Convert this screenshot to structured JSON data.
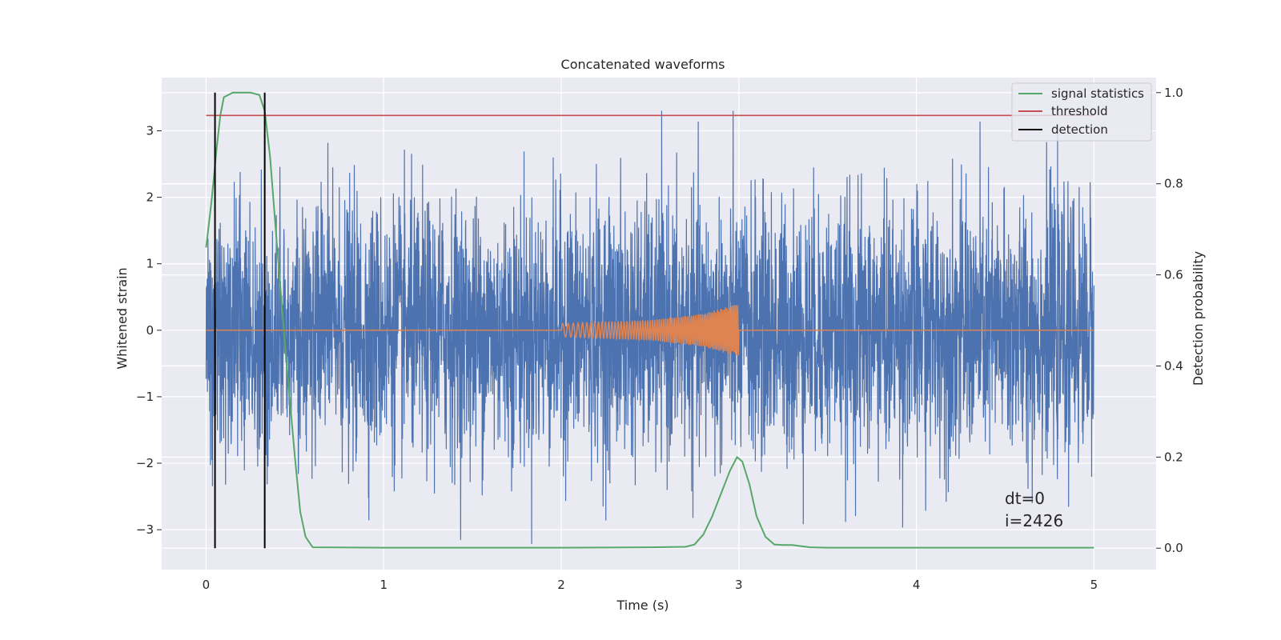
{
  "chart_data": {
    "type": "line",
    "title": "Concatenated waveforms",
    "xlabel": "Time (s)",
    "ylabel": "Whitened strain",
    "y2label": "Detection probability",
    "xlim": [
      -0.25,
      5.35
    ],
    "ylim": [
      -3.6,
      3.8
    ],
    "y2lim": [
      -0.047,
      1.033
    ],
    "grid": true,
    "legend_position": "top-right",
    "x_ticks": [
      "0",
      "1",
      "2",
      "3",
      "4",
      "5"
    ],
    "y_ticks": [
      "3",
      "2",
      "1",
      "0",
      "−1",
      "−2",
      "−3"
    ],
    "y2_ticks": [
      "1.0",
      "0.8",
      "0.6",
      "0.4",
      "0.2",
      "0.0"
    ],
    "annotations": [
      "dt=0",
      "i=2426"
    ],
    "series": [
      {
        "name": "",
        "axis": "left",
        "color": "#4c72b0",
        "description": "whitened noisy strain, about ±1.5 typical with spikes to about ±3.3",
        "x_range": [
          0,
          5
        ],
        "envelope_y": [
          -3.3,
          3.3
        ]
      },
      {
        "name": "",
        "axis": "left",
        "color": "#dd8452",
        "description": "chirp signal, zero except between t=2 and t=3 with growing amplitude",
        "x": [
          0,
          2.0,
          2.5,
          2.8,
          3.0,
          3.0,
          5.0
        ],
        "amplitude": [
          0,
          0.1,
          0.15,
          0.25,
          0.4,
          0,
          0
        ]
      },
      {
        "name": "signal statistics",
        "axis": "right",
        "color": "#55a868",
        "x": [
          0.0,
          0.03,
          0.06,
          0.08,
          0.1,
          0.15,
          0.2,
          0.25,
          0.3,
          0.33,
          0.36,
          0.4,
          0.45,
          0.5,
          0.53,
          0.56,
          0.6,
          1.0,
          1.5,
          2.0,
          2.5,
          2.7,
          2.75,
          2.8,
          2.85,
          2.9,
          2.95,
          2.99,
          3.02,
          3.06,
          3.1,
          3.15,
          3.2,
          3.25,
          3.3,
          3.4,
          3.5,
          4.0,
          4.5,
          5.0
        ],
        "y": [
          0.66,
          0.76,
          0.88,
          0.95,
          0.99,
          1.0,
          1.0,
          1.0,
          0.995,
          0.96,
          0.86,
          0.66,
          0.42,
          0.2,
          0.08,
          0.025,
          0.002,
          0.001,
          0.001,
          0.001,
          0.002,
          0.003,
          0.008,
          0.03,
          0.07,
          0.12,
          0.17,
          0.2,
          0.19,
          0.14,
          0.07,
          0.025,
          0.008,
          0.007,
          0.007,
          0.002,
          0.001,
          0.001,
          0.001,
          0.001
        ]
      },
      {
        "name": "threshold",
        "axis": "right",
        "color": "#c44e52",
        "x": [
          0,
          5
        ],
        "y": [
          0.95,
          0.95
        ]
      },
      {
        "name": "detection",
        "axis": "right",
        "color": "#000000",
        "type": "vlines",
        "x": [
          0.05,
          0.33
        ],
        "y": [
          0.0,
          1.0
        ]
      }
    ]
  }
}
